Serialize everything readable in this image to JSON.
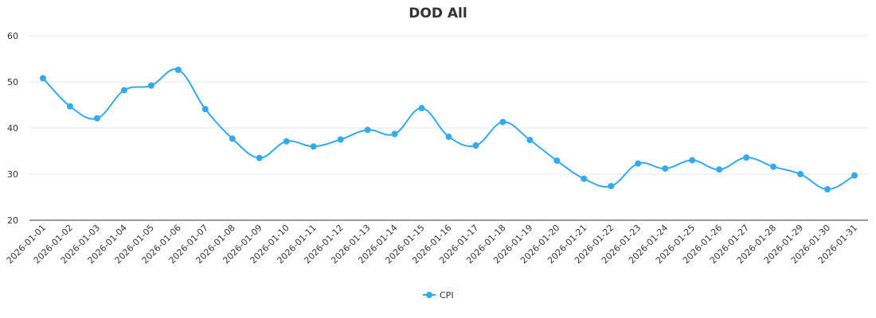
{
  "chart_data": {
    "type": "line",
    "title": "DOD All",
    "xlabel": "",
    "ylabel": "",
    "x": [
      "2026-01-01",
      "2026-01-02",
      "2026-01-03",
      "2026-01-04",
      "2026-01-05",
      "2026-01-06",
      "2026-01-07",
      "2026-01-08",
      "2026-01-09",
      "2026-01-10",
      "2026-01-11",
      "2026-01-12",
      "2026-01-13",
      "2026-01-14",
      "2026-01-15",
      "2026-01-16",
      "2026-01-17",
      "2026-01-18",
      "2026-01-19",
      "2026-01-20",
      "2026-01-21",
      "2026-01-22",
      "2026-01-23",
      "2026-01-24",
      "2026-01-25",
      "2026-01-26",
      "2026-01-27",
      "2026-01-28",
      "2026-01-29",
      "2026-01-30",
      "2026-01-31"
    ],
    "series": [
      {
        "name": "CPI",
        "color": "#33aaee",
        "values": [
          50.8,
          44.7,
          42.1,
          48.2,
          49.2,
          52.6,
          44.1,
          37.7,
          33.5,
          37.1,
          36.0,
          37.5,
          39.6,
          38.7,
          44.3,
          38.1,
          36.2,
          41.3,
          37.4,
          32.9,
          29.0,
          27.4,
          32.3,
          31.2,
          33.0,
          31.0,
          33.6,
          31.6,
          30.0,
          26.7,
          29.7
        ]
      }
    ],
    "ylim": [
      20,
      60
    ],
    "y_ticks": [
      20,
      30,
      40,
      50,
      60
    ],
    "grid": true,
    "legend": "bottom-center"
  }
}
